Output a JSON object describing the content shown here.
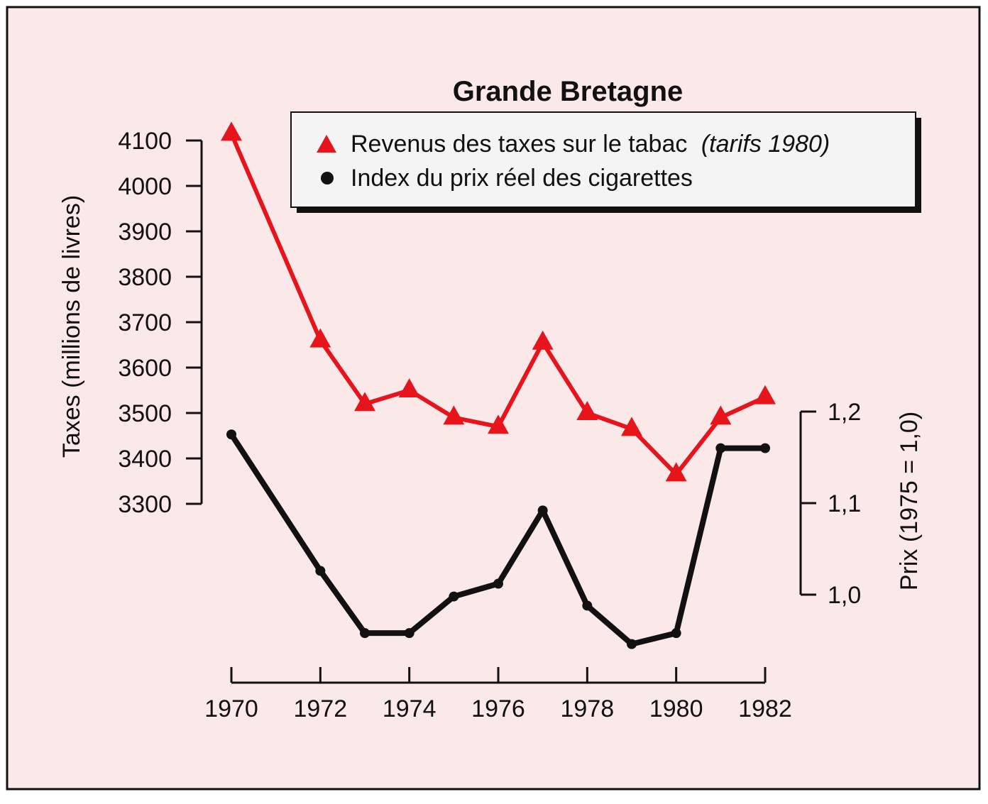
{
  "chart_data": {
    "type": "line",
    "title": "Grande Bretagne",
    "x": [
      1970,
      1972,
      1973,
      1974,
      1975,
      1976,
      1977,
      1978,
      1979,
      1980,
      1981,
      1982
    ],
    "x_ticks": [
      "1970",
      "1972",
      "1974",
      "1976",
      "1978",
      "1980",
      "1982"
    ],
    "xlim": [
      1970,
      1982
    ],
    "left_axis": {
      "label": "Taxes (millions de livres)",
      "ticks": [
        "4100",
        "4000",
        "3900",
        "3800",
        "3700",
        "3600",
        "3500",
        "3400",
        "3300"
      ],
      "ylim": [
        3300,
        4100
      ]
    },
    "right_axis": {
      "label": "Prix (1975 = 1,0)",
      "ticks": [
        "1,2",
        "1,1",
        "1,0"
      ],
      "ylim": [
        1.0,
        1.2
      ]
    },
    "series": [
      {
        "name": "Revenus des taxes sur le tabac",
        "name_italic": "(tarifs 1980)",
        "axis": "left",
        "marker": "triangle",
        "color": "#e8141c",
        "points": [
          [
            1970,
            4115
          ],
          [
            1972,
            3660
          ],
          [
            1973,
            3520
          ],
          [
            1974,
            3550
          ],
          [
            1975,
            3490
          ],
          [
            1976,
            3470
          ],
          [
            1977,
            3655
          ],
          [
            1978,
            3500
          ],
          [
            1979,
            3465
          ],
          [
            1980,
            3365
          ],
          [
            1981,
            3490
          ],
          [
            1982,
            3535
          ]
        ]
      },
      {
        "name": "Index du prix réel des cigarettes",
        "axis": "right",
        "marker": "circle",
        "color": "#111111",
        "points": [
          [
            1970,
            1.175
          ],
          [
            1972,
            1.026
          ],
          [
            1973,
            0.958
          ],
          [
            1974,
            0.958
          ],
          [
            1975,
            0.998
          ],
          [
            1976,
            1.012
          ],
          [
            1977,
            1.092
          ],
          [
            1978,
            0.988
          ],
          [
            1979,
            0.946
          ],
          [
            1980,
            0.958
          ],
          [
            1981,
            1.16
          ],
          [
            1982,
            1.16
          ]
        ]
      }
    ],
    "legend_position": "top-right",
    "grid": false
  },
  "colors": {
    "background": "#fbe9ea",
    "border": "#111111",
    "legend_box": "#f4f4f4",
    "legend_shadow": "#111111"
  }
}
